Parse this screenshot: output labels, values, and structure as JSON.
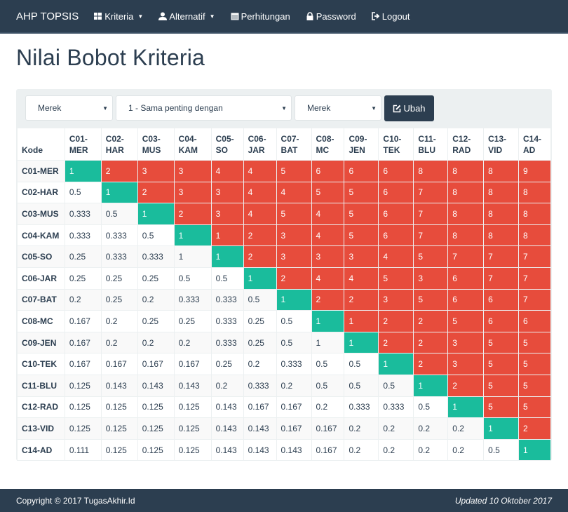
{
  "nav": {
    "brand": "AHP TOPSIS",
    "items": [
      {
        "label": "Kriteria",
        "icon": "th-large-icon",
        "dropdown": true
      },
      {
        "label": "Alternatif",
        "icon": "user-icon",
        "dropdown": true
      },
      {
        "label": "Perhitungan",
        "icon": "calendar-icon",
        "dropdown": false
      },
      {
        "label": "Password",
        "icon": "lock-icon",
        "dropdown": false
      },
      {
        "label": "Logout",
        "icon": "logout-icon",
        "dropdown": false
      }
    ]
  },
  "page_title": "Nilai Bobot Kriteria",
  "form": {
    "criteria1": "Merek",
    "scale": "1 - Sama penting dengan",
    "criteria2": "Merek",
    "submit_label": "Ubah"
  },
  "table": {
    "kode_header": "Kode",
    "columns": [
      "C01-MER",
      "C02-HAR",
      "C03-MUS",
      "C04-KAM",
      "C05-SO",
      "C06-JAR",
      "C07-BAT",
      "C08-MC",
      "C09-JEN",
      "C10-TEK",
      "C11-BLU",
      "C12-RAD",
      "C13-VID",
      "C14-AD"
    ],
    "rows": [
      {
        "kode": "C01-MER",
        "values": [
          "1",
          "2",
          "3",
          "3",
          "4",
          "4",
          "5",
          "6",
          "6",
          "6",
          "8",
          "8",
          "8",
          "9"
        ]
      },
      {
        "kode": "C02-HAR",
        "values": [
          "0.5",
          "1",
          "2",
          "3",
          "3",
          "4",
          "4",
          "5",
          "5",
          "6",
          "7",
          "8",
          "8",
          "8"
        ]
      },
      {
        "kode": "C03-MUS",
        "values": [
          "0.333",
          "0.5",
          "1",
          "2",
          "3",
          "4",
          "5",
          "4",
          "5",
          "6",
          "7",
          "8",
          "8",
          "8"
        ]
      },
      {
        "kode": "C04-KAM",
        "values": [
          "0.333",
          "0.333",
          "0.5",
          "1",
          "1",
          "2",
          "3",
          "4",
          "5",
          "6",
          "7",
          "8",
          "8",
          "8"
        ]
      },
      {
        "kode": "C05-SO",
        "values": [
          "0.25",
          "0.333",
          "0.333",
          "1",
          "1",
          "2",
          "3",
          "3",
          "3",
          "4",
          "5",
          "7",
          "7",
          "7"
        ]
      },
      {
        "kode": "C06-JAR",
        "values": [
          "0.25",
          "0.25",
          "0.25",
          "0.5",
          "0.5",
          "1",
          "2",
          "4",
          "4",
          "5",
          "3",
          "6",
          "7",
          "7"
        ]
      },
      {
        "kode": "C07-BAT",
        "values": [
          "0.2",
          "0.25",
          "0.2",
          "0.333",
          "0.333",
          "0.5",
          "1",
          "2",
          "2",
          "3",
          "5",
          "6",
          "6",
          "7"
        ]
      },
      {
        "kode": "C08-MC",
        "values": [
          "0.167",
          "0.2",
          "0.25",
          "0.25",
          "0.333",
          "0.25",
          "0.5",
          "1",
          "1",
          "2",
          "2",
          "5",
          "6",
          "6"
        ]
      },
      {
        "kode": "C09-JEN",
        "values": [
          "0.167",
          "0.2",
          "0.2",
          "0.2",
          "0.333",
          "0.25",
          "0.5",
          "1",
          "1",
          "2",
          "2",
          "3",
          "5",
          "5"
        ]
      },
      {
        "kode": "C10-TEK",
        "values": [
          "0.167",
          "0.167",
          "0.167",
          "0.167",
          "0.25",
          "0.2",
          "0.333",
          "0.5",
          "0.5",
          "1",
          "2",
          "3",
          "5",
          "5"
        ]
      },
      {
        "kode": "C11-BLU",
        "values": [
          "0.125",
          "0.143",
          "0.143",
          "0.143",
          "0.2",
          "0.333",
          "0.2",
          "0.5",
          "0.5",
          "0.5",
          "1",
          "2",
          "5",
          "5"
        ]
      },
      {
        "kode": "C12-RAD",
        "values": [
          "0.125",
          "0.125",
          "0.125",
          "0.125",
          "0.143",
          "0.167",
          "0.167",
          "0.2",
          "0.333",
          "0.333",
          "0.5",
          "1",
          "5",
          "5"
        ]
      },
      {
        "kode": "C13-VID",
        "values": [
          "0.125",
          "0.125",
          "0.125",
          "0.125",
          "0.143",
          "0.143",
          "0.167",
          "0.167",
          "0.2",
          "0.2",
          "0.2",
          "0.2",
          "1",
          "2"
        ]
      },
      {
        "kode": "C14-AD",
        "values": [
          "0.111",
          "0.125",
          "0.125",
          "0.125",
          "0.143",
          "0.143",
          "0.143",
          "0.167",
          "0.2",
          "0.2",
          "0.2",
          "0.2",
          "0.5",
          "1"
        ]
      }
    ]
  },
  "colors": {
    "diagonal": "#1abc9c",
    "upper": "#e74c3c",
    "navbar": "#2c3e50"
  },
  "footer": {
    "copyright": "Copyright © 2017 TugasAkhir.Id",
    "updated": "Updated 10 Oktober 2017"
  }
}
